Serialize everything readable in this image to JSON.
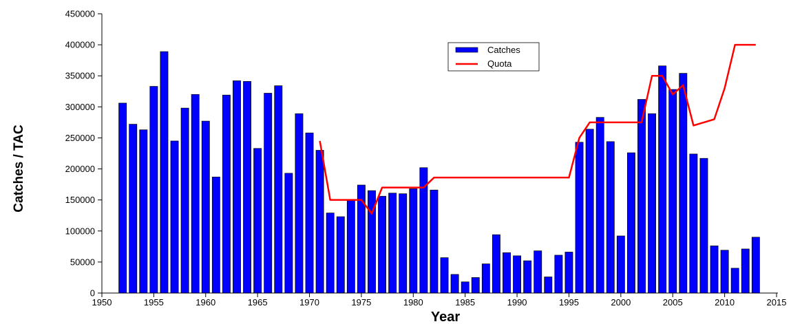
{
  "chart_data": {
    "type": "bar",
    "xlabel": "Year",
    "ylabel": "Catches / TAC",
    "xlim": [
      1950,
      2015
    ],
    "ylim": [
      0,
      450000
    ],
    "x_ticks": [
      "1950",
      "1955",
      "1960",
      "1965",
      "1970",
      "1975",
      "1980",
      "1985",
      "1990",
      "1995",
      "2000",
      "2005",
      "2010",
      "2015"
    ],
    "y_ticks": [
      "0",
      "50000",
      "100000",
      "150000",
      "200000",
      "250000",
      "300000",
      "350000",
      "400000",
      "450000"
    ],
    "grid": false,
    "legend": {
      "position": "top-center",
      "entries": [
        "Catches",
        "Quota"
      ]
    },
    "colors": {
      "bars": "#0000ff",
      "bar_edge": "#000000",
      "quota_line": "#ff0000"
    },
    "series": [
      {
        "name": "Catches",
        "type": "bar",
        "x": [
          1952,
          1953,
          1954,
          1955,
          1956,
          1957,
          1958,
          1959,
          1960,
          1961,
          1962,
          1963,
          1964,
          1965,
          1966,
          1967,
          1968,
          1969,
          1970,
          1971,
          1972,
          1973,
          1974,
          1975,
          1976,
          1977,
          1978,
          1979,
          1980,
          1981,
          1982,
          1983,
          1984,
          1985,
          1986,
          1987,
          1988,
          1989,
          1990,
          1991,
          1992,
          1993,
          1994,
          1995,
          1996,
          1997,
          1998,
          1999,
          2000,
          2001,
          2002,
          2003,
          2004,
          2005,
          2006,
          2007,
          2008,
          2009,
          2010,
          2011,
          2012,
          2013
        ],
        "values": [
          306000,
          272000,
          263000,
          333000,
          389000,
          245000,
          298000,
          320000,
          277000,
          187000,
          319000,
          342000,
          341000,
          233000,
          322000,
          334000,
          193000,
          289000,
          258000,
          230000,
          129000,
          123000,
          149000,
          174000,
          165000,
          156000,
          161000,
          160000,
          168000,
          202000,
          166000,
          57000,
          30000,
          18000,
          25000,
          47000,
          94000,
          65000,
          60000,
          52000,
          68000,
          26000,
          61000,
          66000,
          243000,
          264000,
          283000,
          244000,
          92000,
          226000,
          312000,
          289000,
          366000,
          328000,
          354000,
          224000,
          217000,
          76000,
          69000,
          40000,
          71000,
          90000
        ]
      },
      {
        "name": "Quota",
        "type": "line",
        "x": [
          1971,
          1972,
          1973,
          1974,
          1975,
          1976,
          1977,
          1978,
          1979,
          1980,
          1981,
          1982,
          1995,
          1996,
          1997,
          1998,
          1999,
          2000,
          2001,
          2002,
          2003,
          2004,
          2005,
          2006,
          2007,
          2008,
          2009,
          2010,
          2011,
          2012,
          2013
        ],
        "values": [
          245000,
          150000,
          150000,
          150000,
          150000,
          128000,
          170000,
          170000,
          170000,
          170000,
          170000,
          186000,
          186000,
          250000,
          275000,
          275000,
          275000,
          275000,
          275000,
          275000,
          350000,
          350000,
          320000,
          335000,
          270000,
          275000,
          280000,
          330000,
          400000,
          400000,
          400000
        ]
      }
    ]
  }
}
